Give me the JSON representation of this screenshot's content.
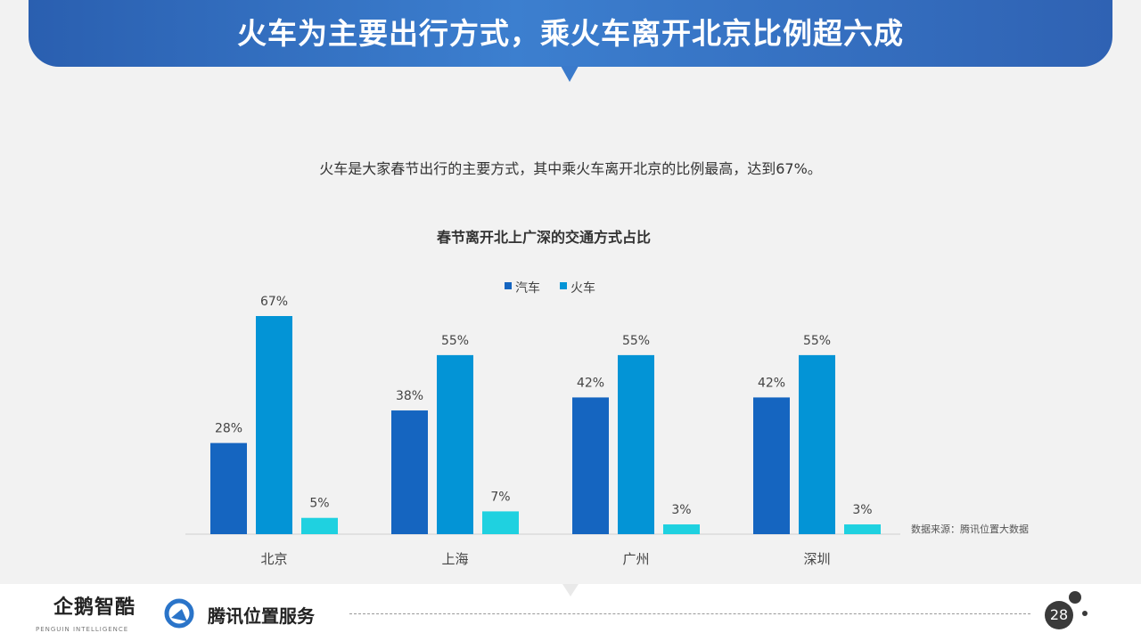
{
  "header": {
    "title": "火车为主要出行方式，乘火车离开北京比例超六成"
  },
  "subtitle": "火车是大家春节出行的主要方式，其中乘火车离开北京的比例最高，达到67%。",
  "source_note": "数据来源：腾讯位置大数据",
  "footer": {
    "logo_left": "企鹅智酷",
    "logo_left_sub": "PENGUIN INTELLIGENCE",
    "logo_right": "腾讯位置服务",
    "page_number": "28"
  },
  "colors": {
    "banner": "#2f6bbf",
    "car": "#1565c0",
    "train": "#0394d6",
    "third": "#1fd1e0"
  },
  "chart_data": {
    "type": "bar",
    "title": "春节离开北上广深的交通方式占比",
    "categories": [
      "北京",
      "上海",
      "广州",
      "深圳"
    ],
    "series": [
      {
        "name": "汽车",
        "values": [
          28,
          38,
          42,
          42
        ],
        "labels": [
          "28%",
          "38%",
          "42%",
          "42%"
        ],
        "color": "#1565c0"
      },
      {
        "name": "火车",
        "values": [
          67,
          55,
          55,
          55
        ],
        "labels": [
          "67%",
          "55%",
          "55%",
          "55%"
        ],
        "color": "#0394d6"
      },
      {
        "name": "",
        "values": [
          5,
          7,
          3,
          3
        ],
        "labels": [
          "5%",
          "7%",
          "3%",
          "3%"
        ],
        "color": "#1fd1e0"
      }
    ],
    "legend": [
      "汽车",
      "火车"
    ],
    "legend_position": "top-center",
    "ylim": [
      0,
      70
    ],
    "grid": false
  }
}
